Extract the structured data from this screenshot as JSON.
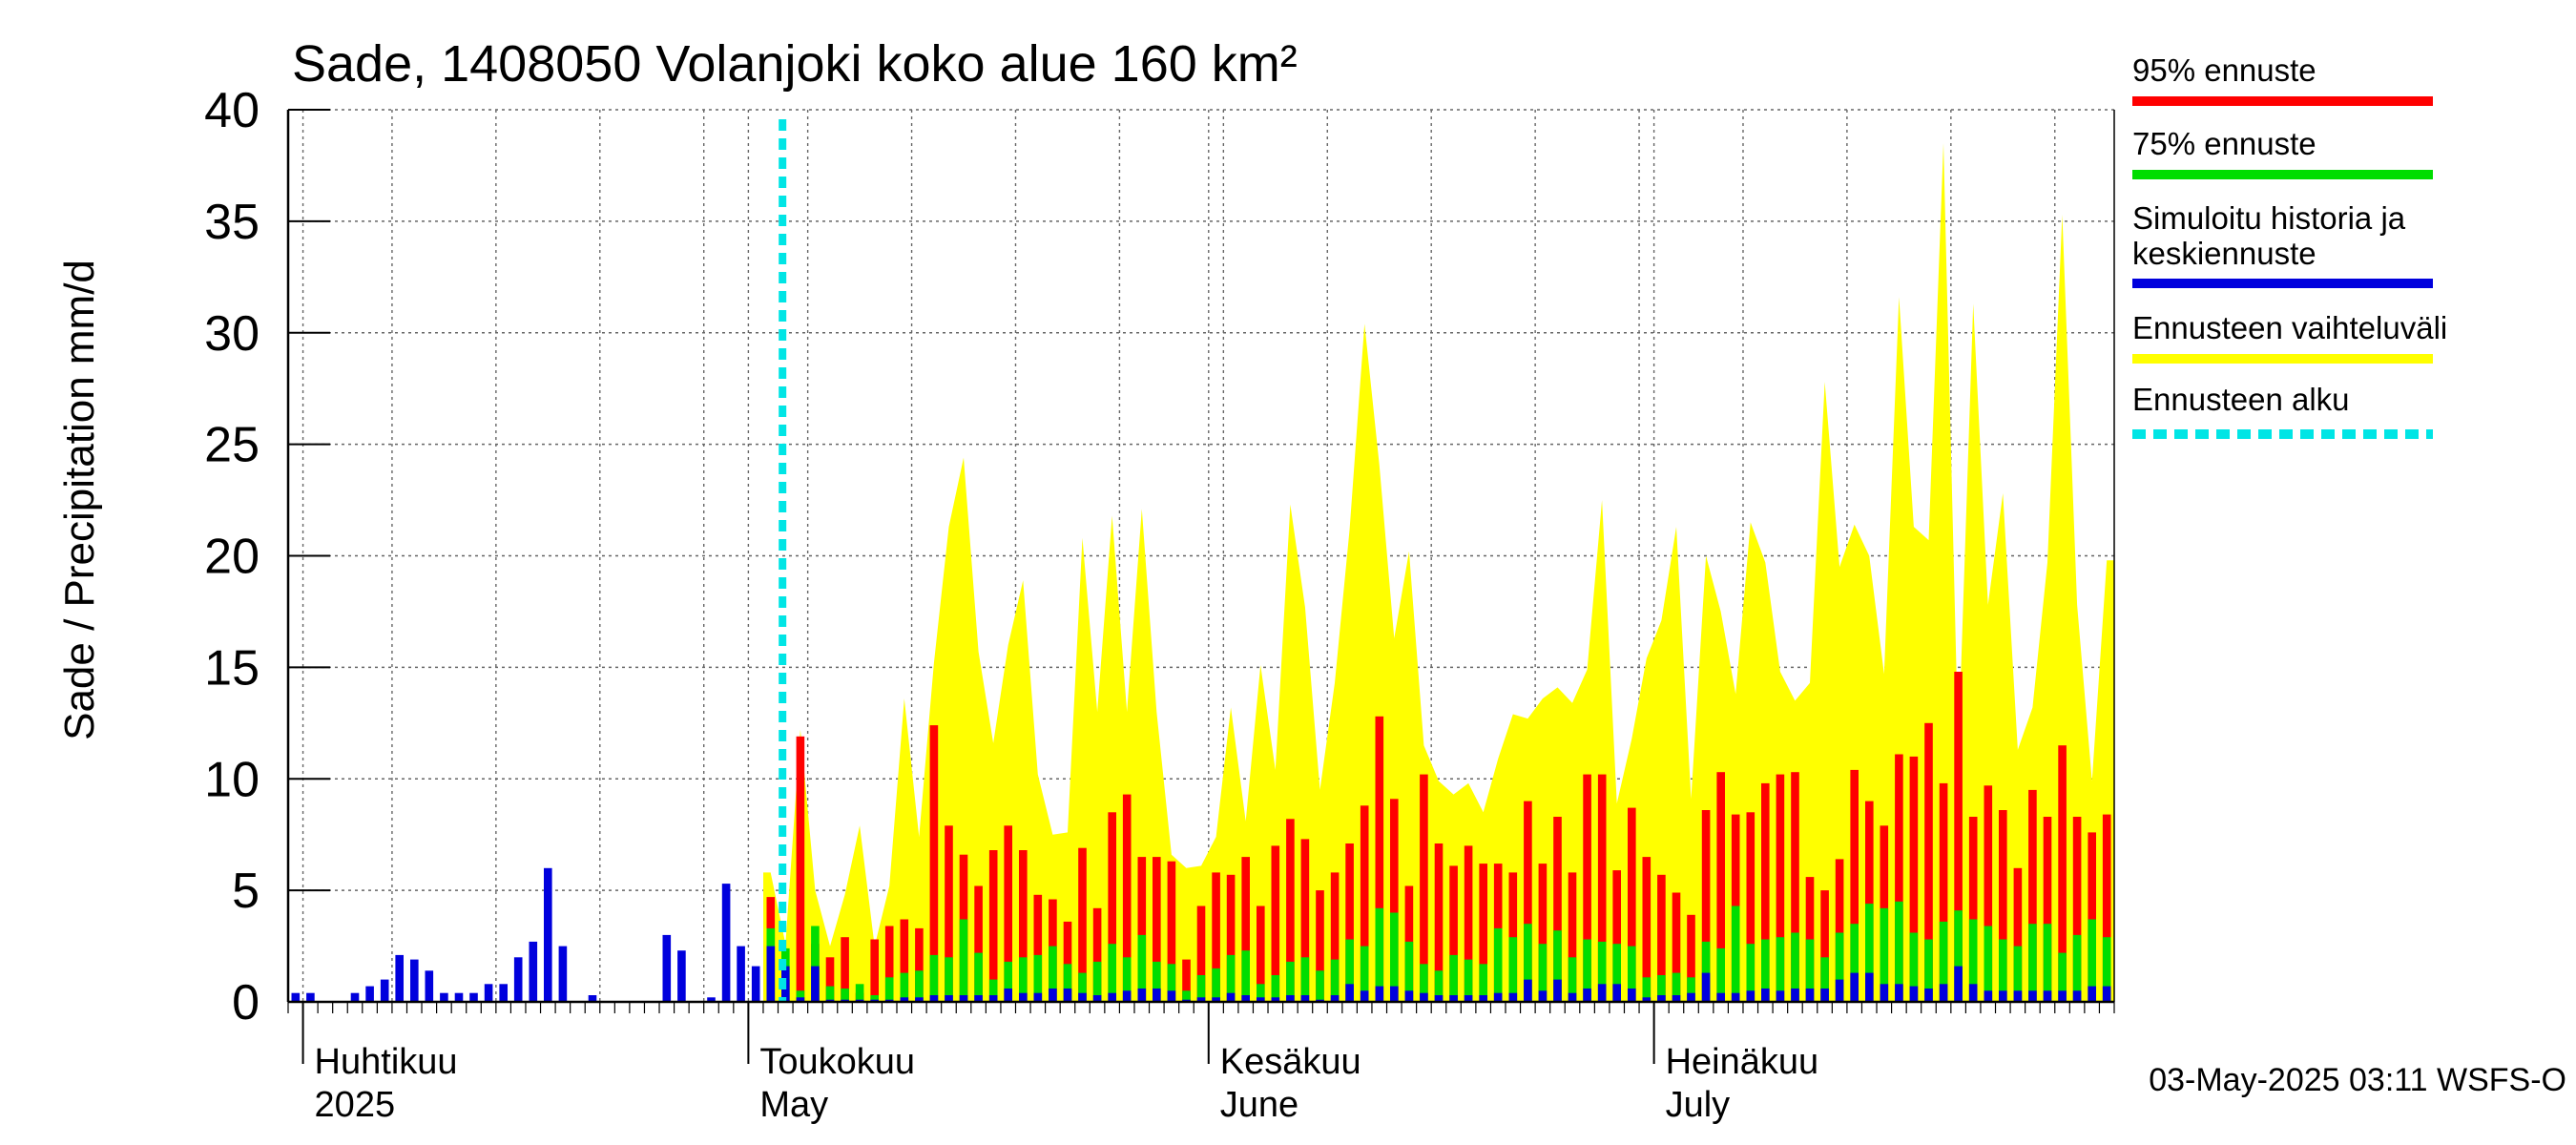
{
  "chart_data": {
    "type": "bar",
    "title": "Sade, 1408050 Volanjoki koko alue 160 km²",
    "ylabel": "Sade / Precipitation   mm/d",
    "ylim": [
      0,
      40
    ],
    "yticks": [
      0,
      5,
      10,
      15,
      20,
      25,
      30,
      35,
      40
    ],
    "ytick_labels": [
      "0",
      "5",
      "10",
      "15",
      "20",
      "25",
      "30",
      "35",
      "40"
    ],
    "grid": true,
    "legend_position": "right",
    "x_start": "2025-03-31",
    "x_days": 123,
    "forecast_start": "2025-05-03",
    "month_labels": [
      {
        "date": "2025-04-01",
        "line1": "Huhtikuu",
        "line2": "2025"
      },
      {
        "date": "2025-05-01",
        "line1": "Toukokuu",
        "line2": "May"
      },
      {
        "date": "2025-06-01",
        "line1": "Kesäkuu",
        "line2": "June"
      },
      {
        "date": "2025-07-01",
        "line1": "Heinäkuu",
        "line2": "July"
      }
    ],
    "history": [
      0.4,
      0.4,
      0,
      0,
      0.4,
      0.7,
      1.0,
      2.1,
      1.9,
      1.4,
      0.4,
      0.4,
      0.4,
      0.8,
      0.8,
      2.0,
      2.7,
      6.0,
      2.5,
      0,
      0.3,
      0,
      0,
      0,
      0,
      3.0,
      2.3,
      0,
      0.2,
      5.3,
      2.5,
      1.6,
      0
    ],
    "series": [
      {
        "name": "95% ennuste",
        "color": "#ff0000",
        "start": "2025-05-02",
        "values": [
          4.7,
          1.0,
          11.9,
          2.6,
          2.0,
          2.9,
          0.4,
          2.8,
          3.4,
          3.7,
          3.3,
          12.4,
          7.9,
          6.6,
          5.2,
          6.8,
          7.9,
          6.8,
          4.8,
          4.6,
          3.6,
          6.9,
          4.2,
          8.5,
          9.3,
          6.5,
          6.5,
          6.3,
          1.9,
          4.3,
          5.8,
          5.7,
          6.5,
          4.3,
          7.0,
          8.2,
          7.3,
          5.0,
          5.8,
          7.1,
          8.8,
          12.8,
          9.1,
          5.2,
          10.2,
          7.1,
          6.1,
          7.0,
          6.2,
          6.2,
          5.8,
          9.0,
          6.2,
          8.3,
          5.8,
          10.2,
          10.2,
          5.9,
          8.7,
          6.5,
          5.7,
          4.9,
          3.9,
          8.6,
          10.3,
          8.4,
          8.5,
          9.8,
          10.2,
          10.3,
          5.6,
          5.0,
          6.4,
          10.4,
          9.0,
          7.9,
          11.1,
          11.0,
          12.5,
          9.8,
          14.8,
          8.3,
          9.7,
          8.6,
          6.0,
          9.5,
          8.3,
          11.5,
          8.3,
          7.6,
          8.4
        ]
      },
      {
        "name": "75% ennuste",
        "color": "#00dd00",
        "start": "2025-05-02",
        "values": [
          3.3,
          2.4,
          0.5,
          3.4,
          0.7,
          0.6,
          0.8,
          0.3,
          1.1,
          1.3,
          1.4,
          2.1,
          2.0,
          3.7,
          2.2,
          1.0,
          1.8,
          2.0,
          2.1,
          2.5,
          1.7,
          1.3,
          1.8,
          2.6,
          2.0,
          3.0,
          1.8,
          1.7,
          0.5,
          1.2,
          1.5,
          2.1,
          2.3,
          0.8,
          1.2,
          1.8,
          2.0,
          1.4,
          1.9,
          2.8,
          2.5,
          4.2,
          4.0,
          2.7,
          1.7,
          1.4,
          2.1,
          1.9,
          1.7,
          3.3,
          2.9,
          3.5,
          2.6,
          3.2,
          2.0,
          2.8,
          2.7,
          2.6,
          2.5,
          1.1,
          1.2,
          1.3,
          1.1,
          2.7,
          2.4,
          4.3,
          2.6,
          2.8,
          2.9,
          3.1,
          2.8,
          2.0,
          3.1,
          3.5,
          4.4,
          4.2,
          4.5,
          3.1,
          2.8,
          3.6,
          4.1,
          3.7,
          3.4,
          2.8,
          2.5,
          3.5,
          3.5,
          2.2,
          3.0,
          3.7,
          2.9
        ]
      },
      {
        "name": "Simuloitu historia ja keskiennuste",
        "color": "#0000dd",
        "start": "2025-05-02",
        "values": [
          2.5,
          1.6,
          0.2,
          1.6,
          0.1,
          0.1,
          0.1,
          0.1,
          0.1,
          0.2,
          0.2,
          0.3,
          0.3,
          0.3,
          0.3,
          0.3,
          0.6,
          0.4,
          0.4,
          0.6,
          0.6,
          0.4,
          0.3,
          0.4,
          0.5,
          0.6,
          0.6,
          0.5,
          0.1,
          0.2,
          0.2,
          0.4,
          0.3,
          0.2,
          0.2,
          0.3,
          0.3,
          0.1,
          0.3,
          0.8,
          0.5,
          0.7,
          0.7,
          0.5,
          0.4,
          0.3,
          0.3,
          0.3,
          0.3,
          0.4,
          0.4,
          1.0,
          0.5,
          1.0,
          0.4,
          0.6,
          0.8,
          0.8,
          0.6,
          0.2,
          0.3,
          0.3,
          0.4,
          1.3,
          0.4,
          0.4,
          0.5,
          0.6,
          0.5,
          0.6,
          0.6,
          0.6,
          1.0,
          1.3,
          1.3,
          0.8,
          0.8,
          0.7,
          0.6,
          0.8,
          1.6,
          0.8,
          0.5,
          0.5,
          0.5,
          0.5,
          0.5,
          0.5,
          0.5,
          0.7,
          0.7
        ]
      },
      {
        "name": "Ennusteen vaihteluväli",
        "color": "#ffff00",
        "start": "2025-05-02",
        "values": [
          5.8,
          2.6,
          12.2,
          5.0,
          2.5,
          4.8,
          7.9,
          2.5,
          5.2,
          13.6,
          7.4,
          15.2,
          21.3,
          24.4,
          15.7,
          11.6,
          16.0,
          18.9,
          10.2,
          7.5,
          7.6,
          20.8,
          13.0,
          21.8,
          13.0,
          22.1,
          13.0,
          6.6,
          6.0,
          6.1,
          7.4,
          13.2,
          8.1,
          15.1,
          10.4,
          22.3,
          17.7,
          9.5,
          14.3,
          21.2,
          30.4,
          24.1,
          16.3,
          20.2,
          11.5,
          9.9,
          9.3,
          9.8,
          8.5,
          10.9,
          12.9,
          12.7,
          13.6,
          14.1,
          13.4,
          14.9,
          22.5,
          8.9,
          11.8,
          15.4,
          17.1,
          21.3,
          9.1,
          20.0,
          17.5,
          13.8,
          21.5,
          19.7,
          14.8,
          13.5,
          14.3,
          27.8,
          19.5,
          21.4,
          20.0,
          14.7,
          31.6,
          21.3,
          20.7,
          38.5,
          11.3,
          31.3,
          17.8,
          22.8,
          11.3,
          13.2,
          19.7,
          35.3,
          17.8,
          9.9,
          19.8
        ]
      },
      {
        "name": "Ennusteen alku",
        "color": "#00e5e5",
        "dashed": true
      }
    ]
  },
  "footer": {
    "timestamp": "03-May-2025 03:11 WSFS-O"
  }
}
